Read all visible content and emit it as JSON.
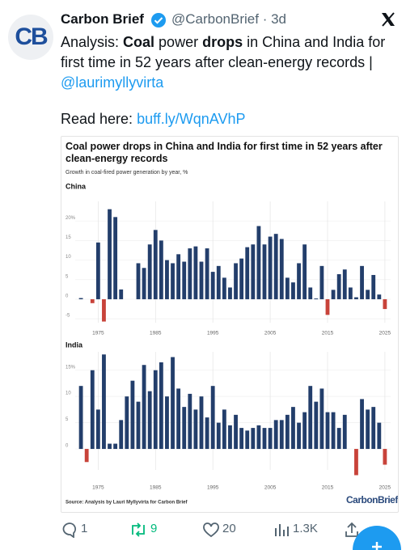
{
  "tweet": {
    "avatar_text": "CB",
    "author": "Carbon Brief",
    "meta": "@CarbonBrief · 3d",
    "text": [
      {
        "text": "Analysis: ",
        "bold": false
      },
      {
        "text": "Coal",
        "bold": true
      },
      {
        "text": " power ",
        "bold": false
      },
      {
        "text": "drops",
        "bold": true
      },
      {
        "text": " in China and India for first time in 52 years after clean-energy records | ",
        "bold": false
      }
    ],
    "mention": "@laurimyllyvirta",
    "read_label": "Read here: ",
    "link": "buff.ly/WqnAVhP"
  },
  "figure": {
    "title": "Coal power drops in China and India for first time in 52 years after clean-energy records",
    "subtitle": "Growth in coal-fired power generation by year, %",
    "source": "Source: Analysis by Lauri Myllyvirta for Carbon Brief",
    "logo": "CarbonBrief"
  },
  "chart_data": [
    {
      "type": "bar",
      "title": "China",
      "color": "#233e6b",
      "negative_color": "#c8433a",
      "grid": true,
      "x": [
        1972,
        1973,
        1974,
        1975,
        1976,
        1977,
        1978,
        1979,
        1980,
        1981,
        1982,
        1983,
        1984,
        1985,
        1986,
        1987,
        1988,
        1989,
        1990,
        1991,
        1992,
        1993,
        1994,
        1995,
        1996,
        1997,
        1998,
        1999,
        2000,
        2001,
        2002,
        2003,
        2004,
        2005,
        2006,
        2007,
        2008,
        2009,
        2010,
        2011,
        2012,
        2013,
        2014,
        2015,
        2016,
        2017,
        2018,
        2019,
        2020,
        2021,
        2022,
        2023,
        2024,
        2025
      ],
      "values": [
        0.3,
        0,
        -1,
        14.5,
        -5.7,
        23,
        21,
        2.5,
        0,
        0,
        9.2,
        8,
        14,
        17.7,
        15,
        10,
        9.2,
        11.5,
        9.6,
        13,
        13.5,
        9.6,
        13,
        7,
        8.5,
        5.5,
        3,
        9.2,
        10.4,
        13.3,
        14,
        18.7,
        14,
        16,
        16.7,
        15.4,
        5.5,
        4.3,
        9.2,
        14,
        3,
        0.2,
        8.5,
        -4,
        2.4,
        6.4,
        7.6,
        3,
        0.5,
        8.5,
        2.4,
        6.2,
        1.2,
        -2.5
      ],
      "xlim": [
        1971,
        2026
      ],
      "xticks": [
        1975,
        1985,
        1995,
        2005,
        2015,
        2025
      ],
      "ylim": [
        -6,
        25
      ],
      "yticks": [
        {
          "value": 20,
          "label": "20%"
        },
        15,
        10,
        5,
        0,
        -5
      ]
    },
    {
      "type": "bar",
      "title": "India",
      "color": "#233e6b",
      "negative_color": "#c8433a",
      "grid": true,
      "x": [
        1972,
        1973,
        1974,
        1975,
        1976,
        1977,
        1978,
        1979,
        1980,
        1981,
        1982,
        1983,
        1984,
        1985,
        1986,
        1987,
        1988,
        1989,
        1990,
        1991,
        1992,
        1993,
        1994,
        1995,
        1996,
        1997,
        1998,
        1999,
        2000,
        2001,
        2002,
        2003,
        2004,
        2005,
        2006,
        2007,
        2008,
        2009,
        2010,
        2011,
        2012,
        2013,
        2014,
        2015,
        2016,
        2017,
        2018,
        2019,
        2020,
        2021,
        2022,
        2023,
        2024,
        2025
      ],
      "values": [
        12,
        -2.5,
        15,
        7.5,
        18,
        1,
        1,
        5.5,
        10,
        13,
        9,
        16,
        11,
        15,
        16.5,
        10,
        17.5,
        11.5,
        8,
        10.5,
        7.5,
        10,
        6,
        12,
        5,
        7.5,
        4.5,
        6.5,
        4,
        3.5,
        4,
        4.5,
        4,
        4,
        5.5,
        5.5,
        6.5,
        8,
        5,
        7,
        12,
        9,
        11.5,
        7,
        7,
        4,
        6.5,
        0,
        -5,
        9.5,
        7.5,
        8,
        5,
        -3
      ],
      "xlim": [
        1971,
        2026
      ],
      "xticks": [
        1975,
        1985,
        1995,
        2005,
        2015,
        2025
      ],
      "ylim": [
        -4,
        18.5
      ],
      "yticks": [
        {
          "value": 15,
          "label": "15%"
        },
        10,
        5,
        0
      ]
    }
  ],
  "actions": {
    "replies": 1,
    "reposts": 9,
    "likes": 20,
    "views": "1.3K"
  }
}
